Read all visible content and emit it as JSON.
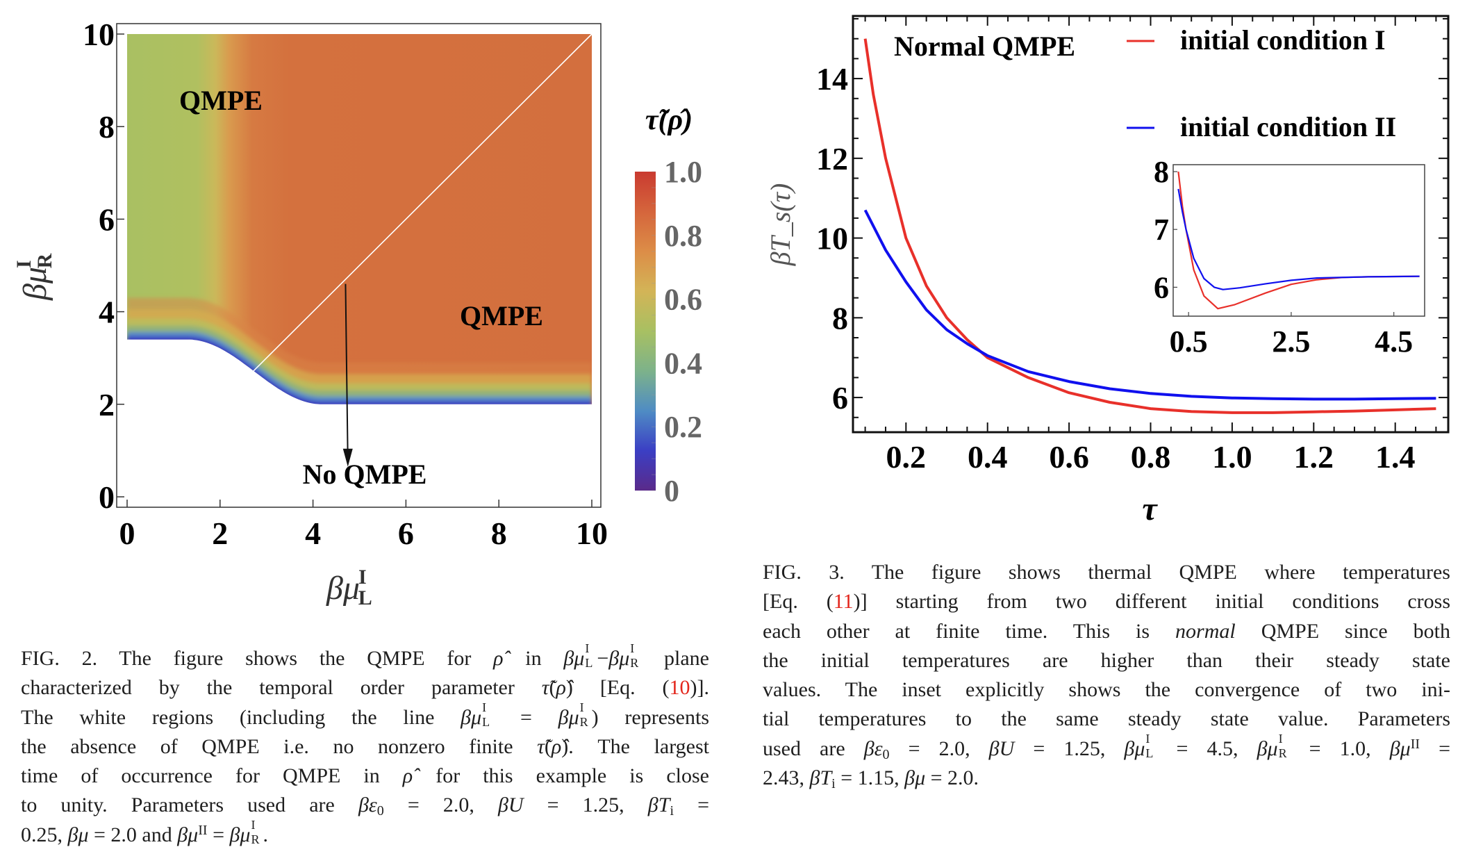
{
  "chart_data": [
    {
      "type": "heatmap",
      "figure": "FIG. 2",
      "xlabel": {
        "base": "βμ",
        "sub": "L",
        "sup": "I"
      },
      "ylabel": {
        "base": "βμ",
        "sub": "R",
        "sup": "I"
      },
      "xlim": [
        0,
        10
      ],
      "ylim": [
        0,
        10
      ],
      "xticks": [
        "0",
        "2",
        "4",
        "6",
        "8",
        "10"
      ],
      "yticks": [
        "0",
        "2",
        "4",
        "6",
        "8",
        "10"
      ],
      "colorbar": {
        "title": "τ̃(ρ̂)",
        "range": [
          0,
          1
        ],
        "ticks": [
          "0",
          "0.2",
          "0.4",
          "0.6",
          "0.8",
          "1.0"
        ],
        "colors": [
          "#5a2a8a",
          "#3b3fc4",
          "#4f8cc4",
          "#7db28a",
          "#a8c062",
          "#d3b457",
          "#dc8d47",
          "#d5653c",
          "#c93a30"
        ]
      },
      "regions": {
        "green_value_approx": 0.6,
        "orange_value_approx": 0.85,
        "green_color": "#a9c062",
        "orange_color": "#d4713e",
        "no_qmpe_color": "#ffffff",
        "boundary_left_y": 3.4,
        "boundary_right_y": 2.0,
        "diagonal_white_line": [
          [
            2.65,
            2.65
          ],
          [
            10,
            10
          ]
        ]
      },
      "annotations": [
        {
          "text": "QMPE",
          "x": 1.0,
          "y": 8.5
        },
        {
          "text": "QMPE",
          "x": 7.0,
          "y": 3.9
        },
        {
          "text": "No QMPE",
          "x": 5.1,
          "y": 0.6
        }
      ],
      "arrow": {
        "from": [
          4.7,
          4.6
        ],
        "to": [
          4.75,
          0.95
        ]
      }
    },
    {
      "type": "line",
      "figure": "FIG. 3",
      "xlabel": "τ",
      "ylabel": "βT_s(τ)",
      "xlim": [
        0.07,
        1.53
      ],
      "ylim": [
        5.13,
        15.57
      ],
      "xticks": [
        "0.2",
        "0.4",
        "0.6",
        "0.8",
        "1.0",
        "1.2",
        "1.4"
      ],
      "yticks": [
        "6",
        "8",
        "10",
        "12",
        "14"
      ],
      "annotation": "Normal QMPE",
      "legend_position": "top-right",
      "series": [
        {
          "name": "initial condition I",
          "color": "#e8302a",
          "x": [
            0.1,
            0.12,
            0.15,
            0.2,
            0.25,
            0.3,
            0.35,
            0.4,
            0.5,
            0.6,
            0.7,
            0.8,
            0.9,
            1.0,
            1.1,
            1.2,
            1.3,
            1.4,
            1.5
          ],
          "y": [
            15.0,
            13.6,
            12.0,
            10.0,
            8.8,
            8.0,
            7.45,
            7.0,
            6.5,
            6.12,
            5.88,
            5.72,
            5.65,
            5.62,
            5.62,
            5.64,
            5.66,
            5.69,
            5.72
          ]
        },
        {
          "name": "initial condition II",
          "color": "#1010ee",
          "x": [
            0.1,
            0.15,
            0.2,
            0.25,
            0.3,
            0.35,
            0.4,
            0.5,
            0.6,
            0.7,
            0.8,
            0.9,
            1.0,
            1.1,
            1.2,
            1.3,
            1.4,
            1.5
          ],
          "y": [
            10.7,
            9.7,
            8.9,
            8.2,
            7.7,
            7.35,
            7.05,
            6.65,
            6.4,
            6.22,
            6.1,
            6.03,
            5.99,
            5.97,
            5.96,
            5.96,
            5.97,
            5.98
          ]
        }
      ],
      "inset": {
        "type": "line",
        "xlim": [
          0.2,
          5.1
        ],
        "ylim": [
          5.5,
          8.12
        ],
        "xticks": [
          "0.5",
          "2.5",
          "4.5"
        ],
        "yticks": [
          "6",
          "7",
          "8"
        ],
        "series": [
          {
            "name": "initial condition I",
            "color": "#e8302a",
            "x": [
              0.3,
              0.38,
              0.45,
              0.6,
              0.8,
              1.07,
              1.4,
              2.0,
              2.5,
              3.0,
              3.5,
              4.0,
              5.0
            ],
            "y": [
              8.0,
              7.4,
              7.0,
              6.3,
              5.85,
              5.63,
              5.7,
              5.9,
              6.05,
              6.13,
              6.17,
              6.18,
              6.19
            ]
          },
          {
            "name": "initial condition II",
            "color": "#1010ee",
            "x": [
              0.3,
              0.38,
              0.45,
              0.6,
              0.8,
              1.0,
              1.17,
              1.5,
              2.0,
              2.5,
              3.0,
              4.0,
              5.0
            ],
            "y": [
              7.7,
              7.3,
              7.0,
              6.5,
              6.15,
              6.0,
              5.96,
              5.99,
              6.06,
              6.12,
              6.16,
              6.18,
              6.19
            ]
          }
        ]
      }
    }
  ],
  "captions": {
    "fig2": [
      [
        {
          "t": "FIG. 2. The figure shows the QMPE for "
        },
        {
          "t": "ρ̂",
          "s": "i"
        },
        {
          "t": " in "
        },
        {
          "t": "βμ",
          "s": "i"
        },
        {
          "sup": "I",
          "sub": "L"
        },
        {
          "t": "−"
        },
        {
          "t": "βμ",
          "s": "i"
        },
        {
          "sup": "I",
          "sub": "R"
        },
        {
          "t": " plane"
        }
      ],
      [
        {
          "t": "characterized by the temporal order parameter "
        },
        {
          "t": "τ̃",
          "s": "i"
        },
        {
          "t": "("
        },
        {
          "t": "ρ̂",
          "s": "i"
        },
        {
          "t": ") [Eq. ("
        },
        {
          "t": "10",
          "s": "ref"
        },
        {
          "t": ")]."
        }
      ],
      [
        {
          "t": "The white regions (including the line "
        },
        {
          "t": "βμ",
          "s": "i"
        },
        {
          "sup": "I",
          "sub": "L"
        },
        {
          "t": " = "
        },
        {
          "t": "βμ",
          "s": "i"
        },
        {
          "sup": "I",
          "sub": "R"
        },
        {
          "t": ") represents"
        }
      ],
      [
        {
          "t": "the absence of QMPE i.e. no nonzero finite "
        },
        {
          "t": "τ̃",
          "s": "i"
        },
        {
          "t": "("
        },
        {
          "t": "ρ̂",
          "s": "i"
        },
        {
          "t": "). The largest"
        }
      ],
      [
        {
          "t": "time of occurrence for QMPE in "
        },
        {
          "t": "ρ̂",
          "s": "i"
        },
        {
          "t": " for this example is close"
        }
      ],
      [
        {
          "t": "to unity.  Parameters used are "
        },
        {
          "t": "βε",
          "s": "i"
        },
        {
          "t": "0",
          "s": "sub"
        },
        {
          "t": " = 2.0, "
        },
        {
          "t": "βU",
          "s": "i"
        },
        {
          "t": " = 1.25, "
        },
        {
          "t": "βT",
          "s": "i"
        },
        {
          "t": "i",
          "s": "sub"
        },
        {
          "t": " ="
        }
      ],
      [
        {
          "t": "0.25, "
        },
        {
          "t": "βμ",
          "s": "i"
        },
        {
          "t": " = 2.0 and "
        },
        {
          "t": "βμ",
          "s": "i"
        },
        {
          "t": "II",
          "s": "sup"
        },
        {
          "t": " = "
        },
        {
          "t": "βμ",
          "s": "i"
        },
        {
          "sup": "I",
          "sub": "R"
        },
        {
          "t": "."
        }
      ]
    ],
    "fig3": [
      [
        {
          "t": "FIG. 3. The figure shows thermal QMPE where temperatures"
        }
      ],
      [
        {
          "t": "[Eq. ("
        },
        {
          "t": "11",
          "s": "ref"
        },
        {
          "t": ")] starting from two different initial conditions cross"
        }
      ],
      [
        {
          "t": "each other at finite time.  This is "
        },
        {
          "t": "normal",
          "s": "i"
        },
        {
          "t": " QMPE since both"
        }
      ],
      [
        {
          "t": "the initial temperatures are higher than their steady state"
        }
      ],
      [
        {
          "t": "values. The inset explicitly shows the convergence of two ini-"
        }
      ],
      [
        {
          "t": "tial temperatures to the same steady state value. Parameters"
        }
      ],
      [
        {
          "t": "used are "
        },
        {
          "t": "βε",
          "s": "i"
        },
        {
          "t": "0",
          "s": "sub"
        },
        {
          "t": " = 2.0, "
        },
        {
          "t": "βU",
          "s": "i"
        },
        {
          "t": " = 1.25, "
        },
        {
          "t": "βμ",
          "s": "i"
        },
        {
          "sup": "I",
          "sub": "L"
        },
        {
          "t": " = 4.5, "
        },
        {
          "t": "βμ",
          "s": "i"
        },
        {
          "sup": "I",
          "sub": "R"
        },
        {
          "t": " = 1.0, "
        },
        {
          "t": "βμ",
          "s": "i"
        },
        {
          "t": "II",
          "s": "sup"
        },
        {
          "t": " ="
        }
      ],
      [
        {
          "t": "2.43, "
        },
        {
          "t": "βT",
          "s": "i"
        },
        {
          "t": "i",
          "s": "sub"
        },
        {
          "t": " = 1.15, "
        },
        {
          "t": "βμ",
          "s": "i"
        },
        {
          "t": " = 2.0."
        }
      ]
    ]
  }
}
